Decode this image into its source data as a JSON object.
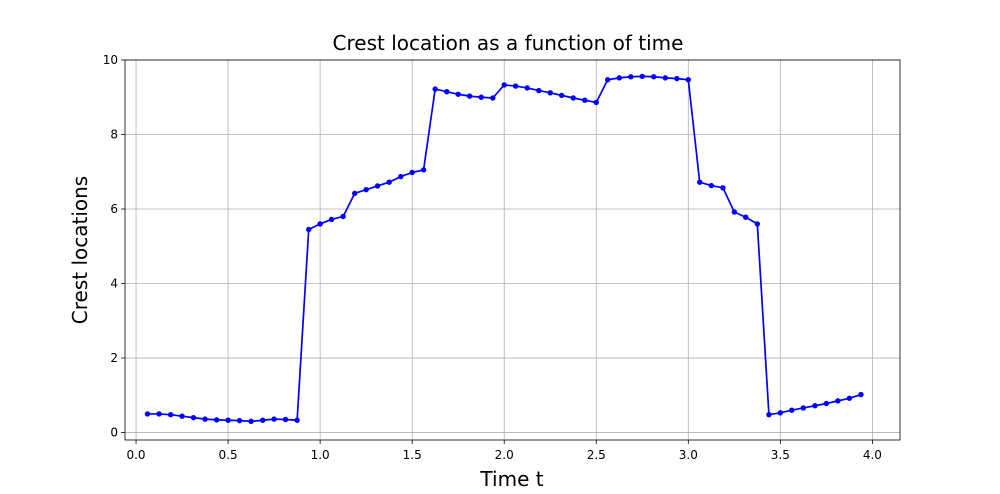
{
  "chart_data": {
    "type": "line",
    "title": "Crest location as a function of time",
    "xlabel": "Time t",
    "ylabel": "Crest locations",
    "xlim": [
      -0.06,
      4.15
    ],
    "ylim": [
      -0.2,
      10.0
    ],
    "xticks": [
      "0.0",
      "0.5",
      "1.0",
      "1.5",
      "2.0",
      "2.5",
      "3.0",
      "3.5",
      "4.0"
    ],
    "yticks": [
      "0",
      "2",
      "4",
      "6",
      "8",
      "10"
    ],
    "grid": true,
    "series": [
      {
        "color": "#0000ff",
        "marker": "circle",
        "x": [
          0.062,
          0.125,
          0.188,
          0.25,
          0.312,
          0.375,
          0.438,
          0.5,
          0.562,
          0.625,
          0.688,
          0.75,
          0.812,
          0.875,
          0.938,
          1.0,
          1.062,
          1.125,
          1.188,
          1.25,
          1.312,
          1.375,
          1.438,
          1.5,
          1.562,
          1.625,
          1.688,
          1.75,
          1.812,
          1.875,
          1.938,
          2.0,
          2.062,
          2.125,
          2.188,
          2.25,
          2.312,
          2.375,
          2.438,
          2.5,
          2.562,
          2.625,
          2.688,
          2.75,
          2.812,
          2.875,
          2.938,
          3.0,
          3.062,
          3.125,
          3.188,
          3.25,
          3.312,
          3.375,
          3.438,
          3.5,
          3.562,
          3.625,
          3.688,
          3.75,
          3.812,
          3.875,
          3.938
        ],
        "y": [
          0.5,
          0.5,
          0.48,
          0.44,
          0.4,
          0.36,
          0.34,
          0.33,
          0.32,
          0.3,
          0.33,
          0.36,
          0.35,
          0.33,
          5.45,
          5.6,
          5.72,
          5.8,
          6.42,
          6.52,
          6.62,
          6.72,
          6.87,
          6.98,
          7.05,
          9.22,
          9.15,
          9.08,
          9.03,
          9.0,
          8.98,
          9.33,
          9.3,
          9.25,
          9.18,
          9.12,
          9.05,
          8.98,
          8.92,
          8.86,
          9.47,
          9.52,
          9.55,
          9.56,
          9.55,
          9.52,
          9.5,
          9.47,
          6.72,
          6.63,
          6.57,
          5.92,
          5.78,
          5.6,
          0.48,
          0.53,
          0.6,
          0.66,
          0.72,
          0.78,
          0.85,
          0.92,
          1.02
        ]
      }
    ]
  }
}
